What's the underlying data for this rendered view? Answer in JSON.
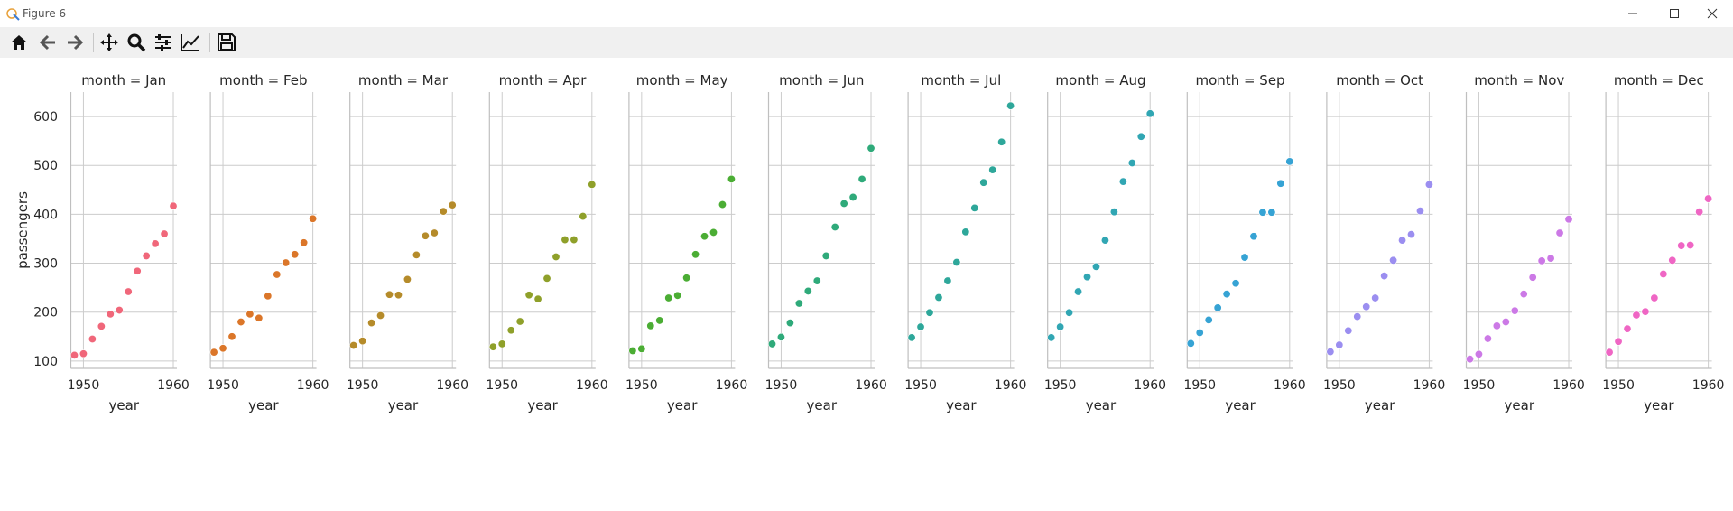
{
  "window": {
    "title": "Figure 6"
  },
  "toolbar": {
    "buttons": [
      {
        "name": "home",
        "icon": "home-icon"
      },
      {
        "name": "back",
        "icon": "arrow-left-icon"
      },
      {
        "name": "forward",
        "icon": "arrow-right-icon"
      },
      {
        "name": "pan",
        "icon": "move-icon"
      },
      {
        "name": "zoom",
        "icon": "magnifier-icon"
      },
      {
        "name": "subplots",
        "icon": "sliders-icon"
      },
      {
        "name": "customize",
        "icon": "line-chart-icon"
      },
      {
        "name": "save",
        "icon": "floppy-disk-icon"
      }
    ]
  },
  "chart_data": {
    "type": "scatter",
    "facet_variable": "month",
    "xlabel": "year",
    "ylabel": "passengers",
    "x_ticks": [
      1950,
      1960
    ],
    "y_ticks": [
      100,
      200,
      300,
      400,
      500,
      600
    ],
    "xlim": [
      1948.6,
      1960.4
    ],
    "ylim": [
      85,
      650
    ],
    "grid": true,
    "x": [
      1949,
      1950,
      1951,
      1952,
      1953,
      1954,
      1955,
      1956,
      1957,
      1958,
      1959,
      1960
    ],
    "panels": [
      {
        "title": "month = Jan",
        "color": "#f0677a",
        "values": [
          112,
          115,
          145,
          171,
          196,
          204,
          242,
          284,
          315,
          340,
          360,
          417
        ]
      },
      {
        "title": "month = Feb",
        "color": "#db7629",
        "values": [
          118,
          126,
          150,
          180,
          196,
          188,
          233,
          277,
          301,
          318,
          342,
          391
        ]
      },
      {
        "title": "month = Mar",
        "color": "#b58b2a",
        "values": [
          132,
          141,
          178,
          193,
          236,
          235,
          267,
          317,
          356,
          362,
          406,
          419
        ]
      },
      {
        "title": "month = Apr",
        "color": "#8fa02a",
        "values": [
          129,
          135,
          163,
          181,
          235,
          227,
          269,
          313,
          348,
          348,
          396,
          461
        ]
      },
      {
        "title": "month = May",
        "color": "#4bad34",
        "values": [
          121,
          125,
          172,
          183,
          229,
          234,
          270,
          318,
          355,
          363,
          420,
          472
        ]
      },
      {
        "title": "month = Jun",
        "color": "#2faa7a",
        "values": [
          135,
          149,
          178,
          218,
          243,
          264,
          315,
          374,
          422,
          435,
          472,
          535
        ]
      },
      {
        "title": "month = Jul",
        "color": "#2ea79a",
        "values": [
          148,
          170,
          199,
          230,
          264,
          302,
          364,
          413,
          465,
          491,
          548,
          622
        ]
      },
      {
        "title": "month = Aug",
        "color": "#31a6b3",
        "values": [
          148,
          170,
          199,
          242,
          272,
          293,
          347,
          405,
          467,
          505,
          559,
          606
        ]
      },
      {
        "title": "month = Sep",
        "color": "#36a3d4",
        "values": [
          136,
          158,
          184,
          209,
          237,
          259,
          312,
          355,
          404,
          404,
          463,
          508
        ]
      },
      {
        "title": "month = Oct",
        "color": "#9b8ef0",
        "values": [
          119,
          133,
          162,
          191,
          211,
          229,
          274,
          306,
          347,
          359,
          407,
          461
        ]
      },
      {
        "title": "month = Nov",
        "color": "#cc79e6",
        "values": [
          104,
          114,
          146,
          172,
          180,
          203,
          237,
          271,
          305,
          310,
          362,
          390
        ]
      },
      {
        "title": "month = Dec",
        "color": "#ef66c4",
        "values": [
          118,
          140,
          166,
          194,
          201,
          229,
          278,
          306,
          336,
          337,
          405,
          432
        ]
      }
    ]
  }
}
